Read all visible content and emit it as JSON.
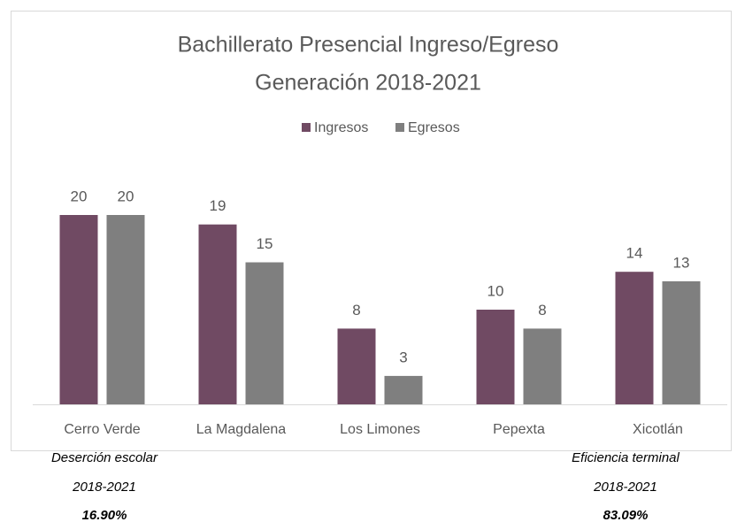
{
  "chart_data": {
    "type": "bar",
    "title": [
      "Bachillerato Presencial  Ingreso/Egreso",
      "Generación  2018-2021"
    ],
    "categories": [
      "Cerro Verde",
      "La Magdalena",
      "Los Limones",
      "Pepexta",
      "Xicotlán"
    ],
    "series": [
      {
        "name": "Ingresos",
        "color": "#704a63",
        "values": [
          20,
          19,
          8,
          10,
          14
        ]
      },
      {
        "name": "Egresos",
        "color": "#7f7f7f",
        "values": [
          20,
          15,
          3,
          8,
          13
        ]
      }
    ],
    "ylim": [
      0,
      20
    ],
    "legend": "top",
    "grid": false
  },
  "notes": [
    {
      "label": "Deserción escolar",
      "period": "2018-2021",
      "value": "16.90%"
    },
    {
      "label": "Eficiencia terminal",
      "period": "2018-2021",
      "value": "83.09%"
    }
  ]
}
